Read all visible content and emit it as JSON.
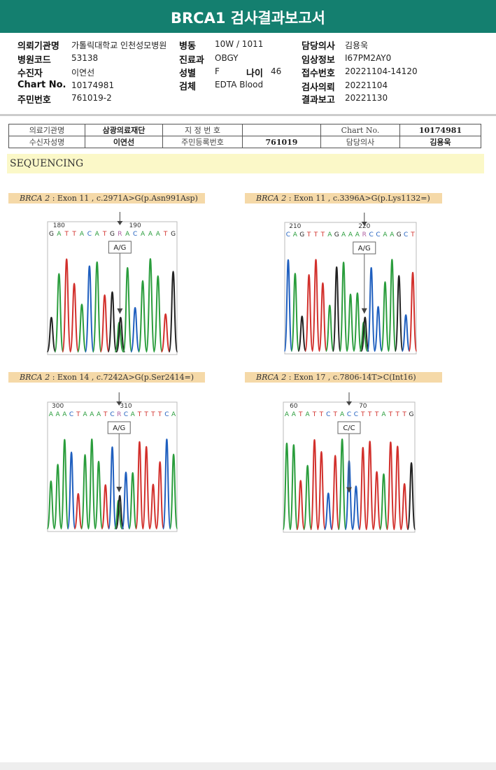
{
  "header": {
    "title": "BRCA1 검사결과보고서"
  },
  "info": {
    "rows": [
      [
        {
          "label": "의뢰기관명",
          "value": "가톨릭대학교 인천성모병원"
        },
        {
          "label": "병동",
          "value": "10W / 1011"
        },
        {
          "label": "담당의사",
          "value": "김용욱"
        }
      ],
      [
        {
          "label": "병원코드",
          "value": "53138"
        },
        {
          "label": "진료과",
          "value": "OBGY"
        },
        {
          "label": "임상정보",
          "value": "I67PM2AY0"
        }
      ],
      [
        {
          "label": "수진자",
          "value": "이연선"
        },
        {
          "label": "성별",
          "value": "F"
        },
        {
          "label": "나이",
          "value": "46"
        },
        {
          "label": "접수번호",
          "value": "20221104-14120"
        }
      ],
      [
        {
          "label": "Chart No.",
          "value": "10174981"
        },
        {
          "label": "검체",
          "value": "EDTA Blood"
        },
        {
          "label": "검사의뢰",
          "value": "20221104"
        }
      ],
      [
        {
          "label": "주민번호",
          "value": "761019-2"
        },
        {
          "label": "결과보고",
          "value": "20221130"
        }
      ]
    ]
  },
  "lab_table": {
    "rows": [
      [
        "의료기관명",
        "삼광의료재단",
        "지 정 번 호",
        "Chart No.",
        "10174981"
      ],
      [
        "수신자성명",
        "이연선",
        "주민등록번호",
        "761019",
        "담당의사",
        "김용욱"
      ]
    ]
  },
  "section": {
    "title": "SEQUENCING"
  },
  "panels": [
    {
      "gene": "BRCA 2",
      "description": " : Exon 11 , c.2971A>G(p.Asn991Asp)",
      "bases": [
        "G",
        "A",
        "T",
        "T",
        "A",
        "C",
        "A",
        "T",
        "G",
        "R",
        "A",
        "C",
        "A",
        "A",
        "A",
        "T",
        "G"
      ],
      "positions": [
        180,
        190
      ],
      "call": "A/G"
    },
    {
      "gene": "BRCA 2",
      "description": " : Exon 11 , c.3396A>G(p.Lys1132=)",
      "bases": [
        "C",
        "A",
        "G",
        "T",
        "T",
        "T",
        "A",
        "G",
        "A",
        "A",
        "A",
        "R",
        "C",
        "C",
        "A",
        "A",
        "G",
        "C",
        "T"
      ],
      "positions": [
        210,
        220
      ],
      "call": "A/G"
    },
    {
      "gene": "BRCA 2",
      "description": " : Exon 14 , c.7242A>G(p.Ser2414=)",
      "bases": [
        "A",
        "A",
        "A",
        "C",
        "T",
        "A",
        "A",
        "A",
        "T",
        "C",
        "R",
        "C",
        "A",
        "T",
        "T",
        "T",
        "T",
        "C",
        "A"
      ],
      "positions": [
        300,
        310
      ],
      "call": "A/G"
    },
    {
      "gene": "BRCA 2",
      "description": " : Exon 17 , c.7806-14T>C(Int16)",
      "bases": [
        "A",
        "A",
        "T",
        "A",
        "T",
        "T",
        "C",
        "T",
        "A",
        "C",
        "C",
        "T",
        "T",
        "T",
        "A",
        "T",
        "T",
        "T",
        "G"
      ],
      "positions": [
        60,
        70
      ],
      "call": "C/C"
    }
  ]
}
